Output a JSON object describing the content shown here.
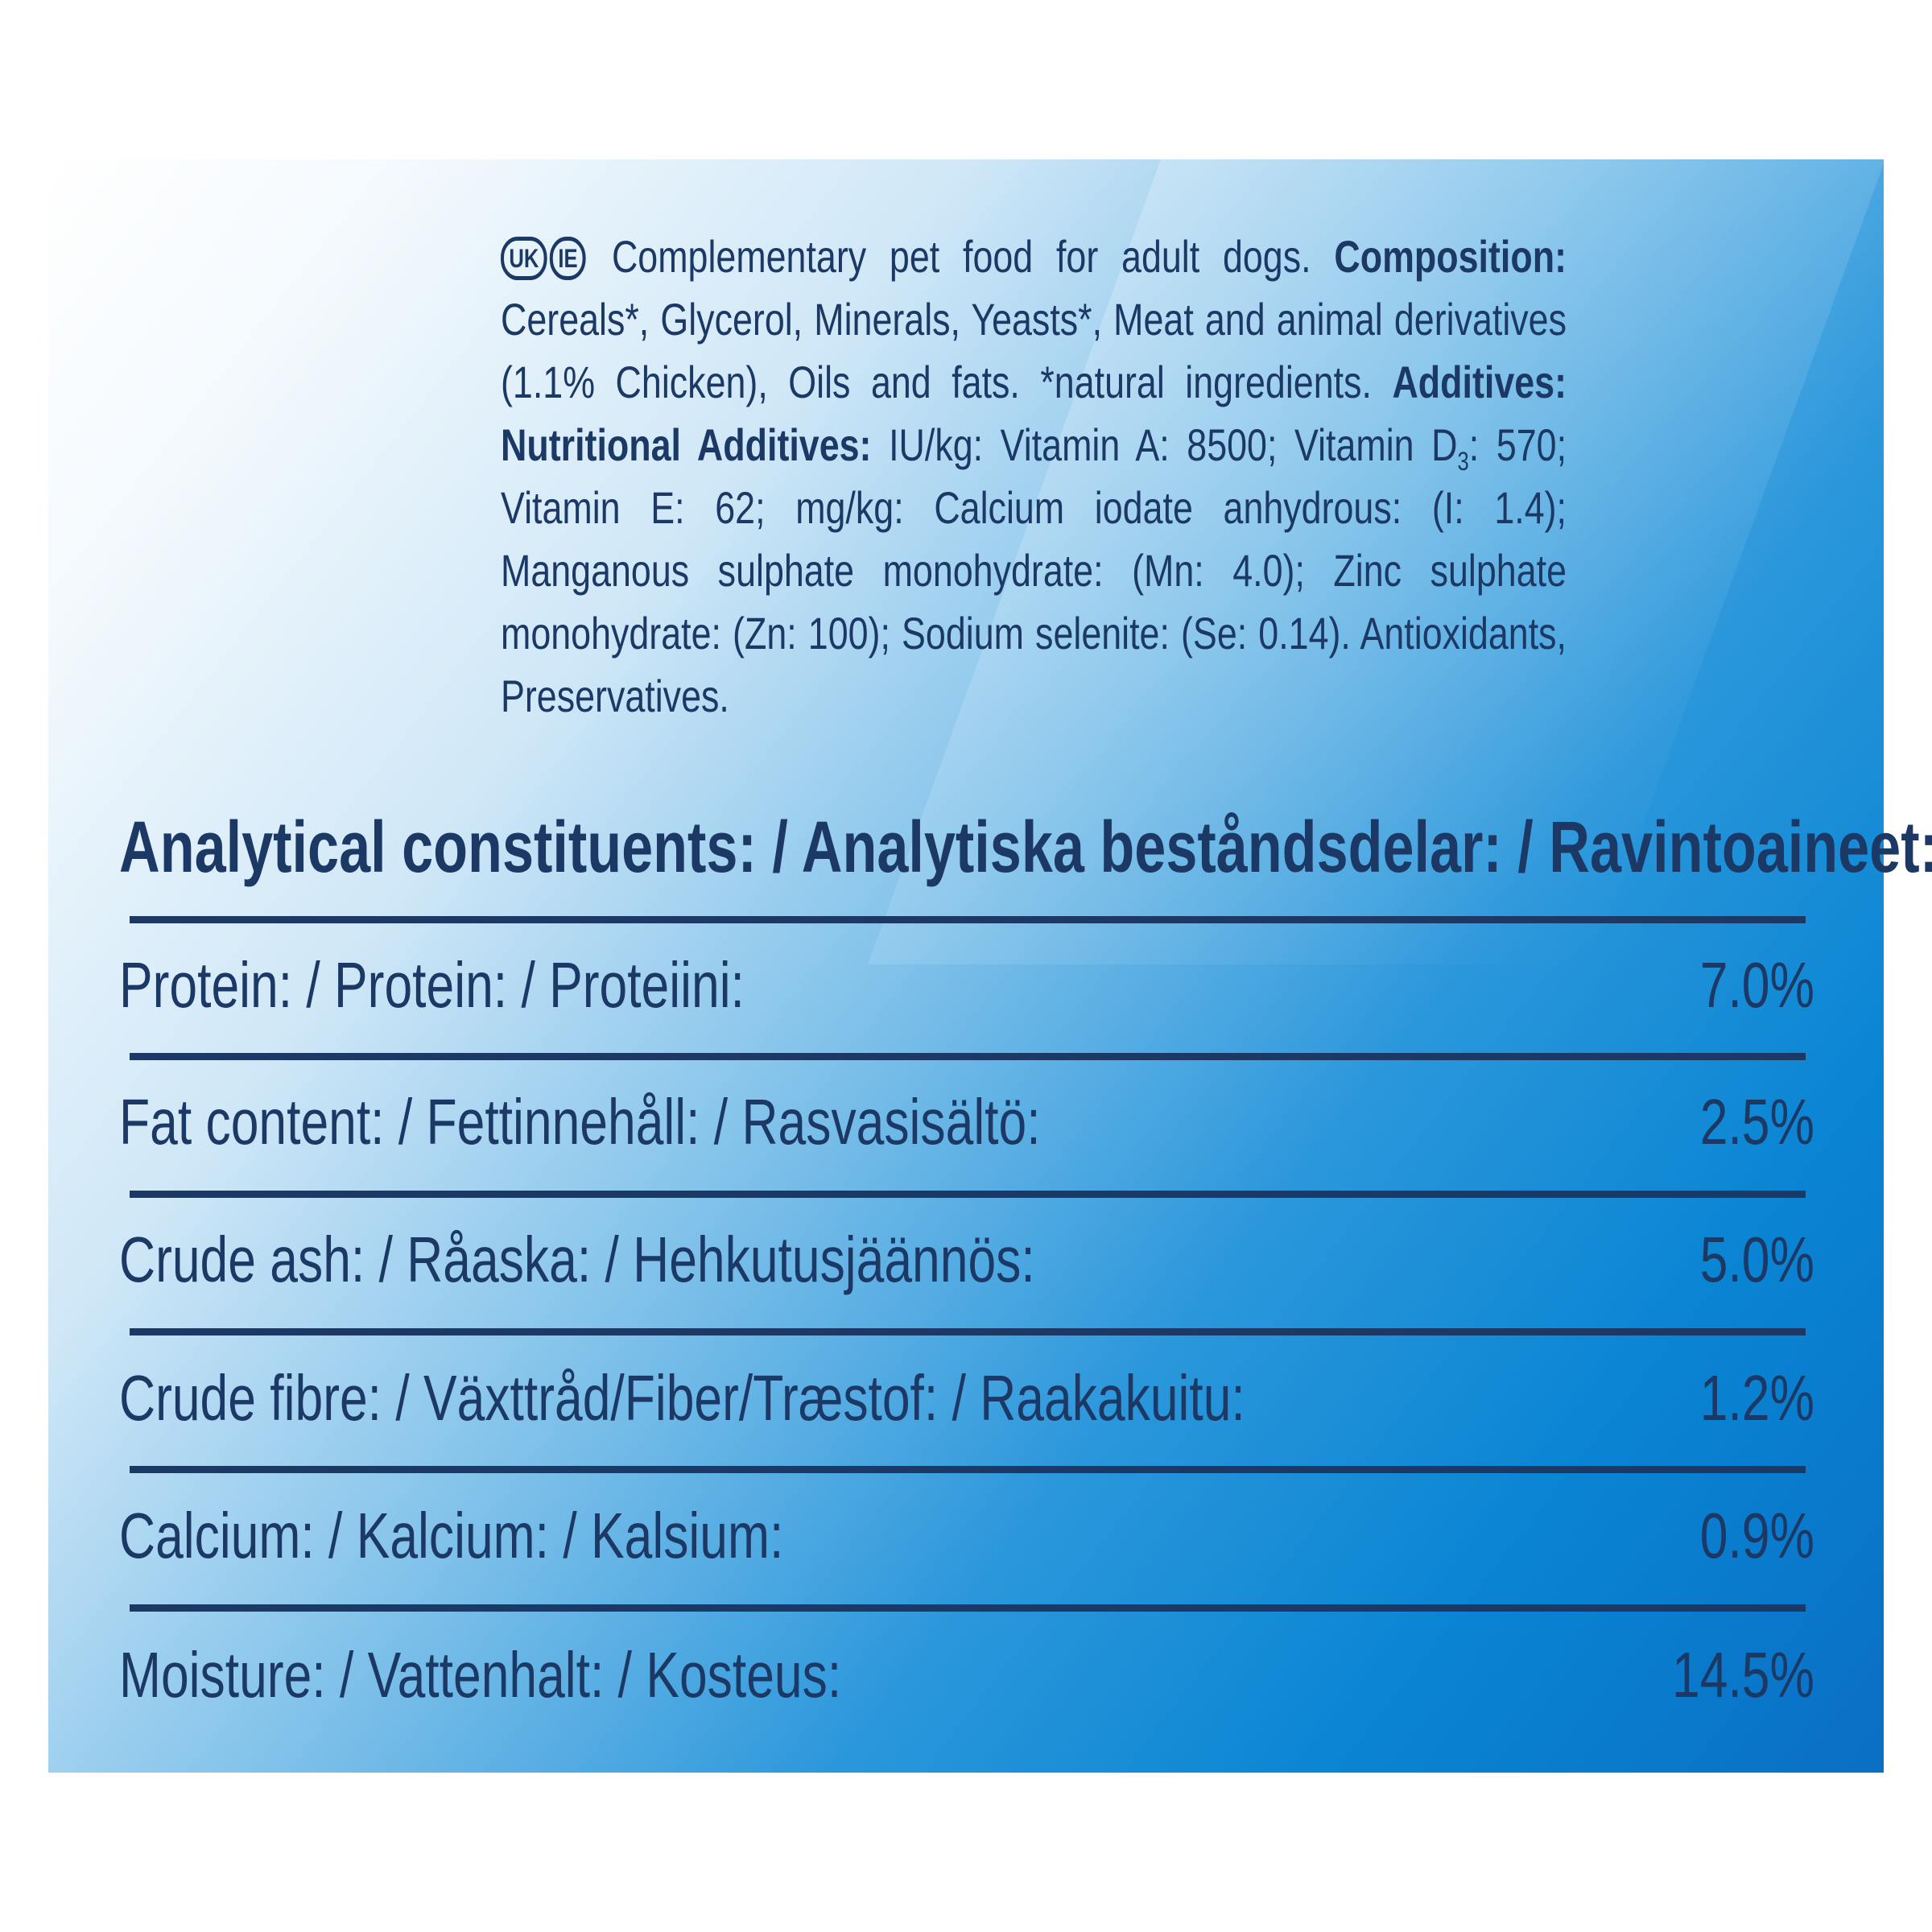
{
  "badges": [
    "UK",
    "IE"
  ],
  "composition": {
    "intro": "Complementary pet food for adult dogs.",
    "composition_label": "Composition:",
    "composition_text": "Cereals*, Glycerol, Minerals, Yeasts*, Meat and animal derivatives (1.1% Chicken), Oils and fats. *natural ingredients.",
    "additives_label": "Additives: Nutritional Additives:",
    "additives_text_1": "IU/kg: Vitamin A: 8500; Vitamin D",
    "d_subscript": "3",
    "additives_text_2": ": 570; Vitamin E: 62; mg/kg: Calcium iodate anhydrous: (I: 1.4); Manganous sulphate monohydrate: (Mn: 4.0); Zinc sulphate monohydrate: (Zn: 100); Sodium selenite: (Se: 0.14). Antioxidants, Preservatives."
  },
  "analytical": {
    "heading": "Analytical constituents: / Analytiska beståndsdelar: / Ravintoaineet:",
    "rows": [
      {
        "label": "Protein: / Protein: / Proteiini:",
        "value": "7.0%"
      },
      {
        "label": "Fat content: / Fettinnehåll: / Rasvasisältö:",
        "value": "2.5%"
      },
      {
        "label": "Crude ash: / Råaska: / Hehkutusjäännös:",
        "value": "5.0%"
      },
      {
        "label": "Crude fibre: / Växttråd/Fiber/Træstof: / Raakakuitu:",
        "value": "1.2%"
      },
      {
        "label": "Calcium: / Kalcium: / Kalsium:",
        "value": "0.9%"
      },
      {
        "label": "Moisture: / Vattenhalt: / Kosteus:",
        "value": "14.5%"
      }
    ]
  },
  "colors": {
    "text": "#1c3966",
    "panel_blue": "#0a85d3"
  }
}
